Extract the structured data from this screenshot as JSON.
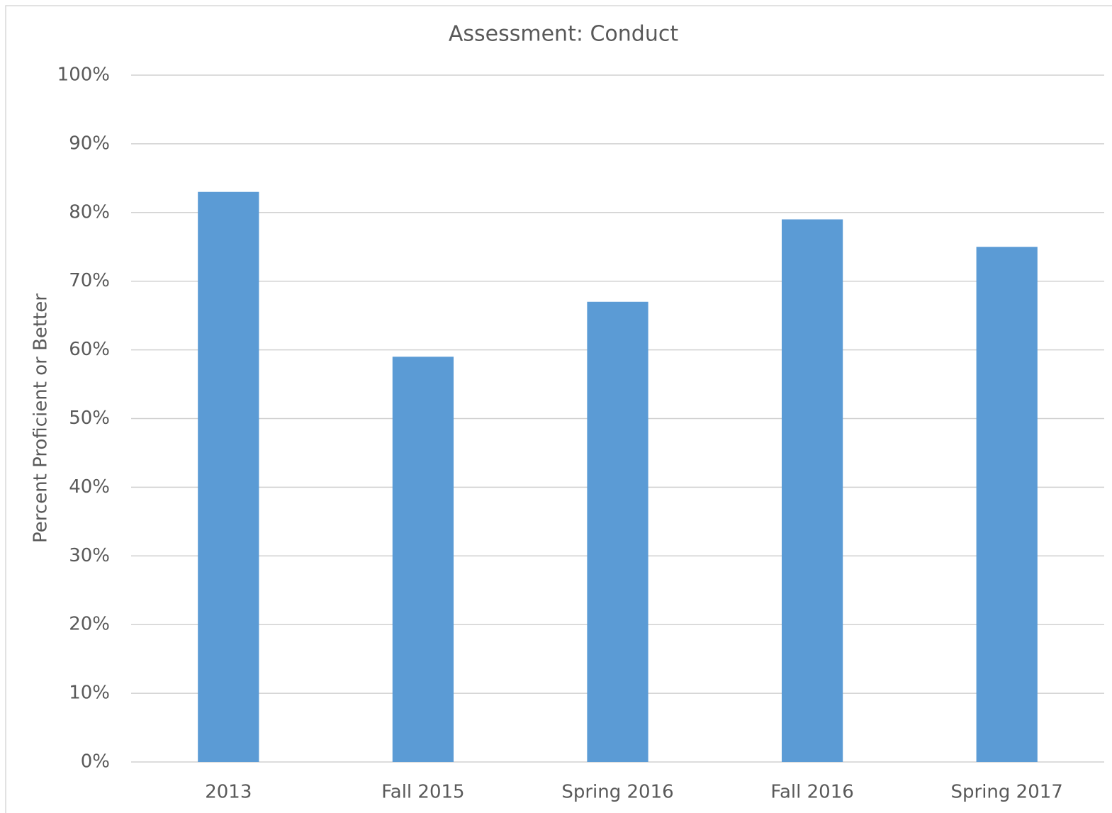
{
  "chart_data": {
    "type": "bar",
    "title": "Assessment: Conduct",
    "y_label": "Percent Proficient or Better",
    "categories": [
      "2013",
      "Fall 2015",
      "Spring 2016",
      "Fall 2016",
      "Spring 2017"
    ],
    "values": [
      83,
      59,
      67,
      79,
      75
    ],
    "color": "#5b9bd5",
    "ylim": [
      0,
      100
    ],
    "yticks": [
      {
        "value": 0,
        "label": "0%"
      },
      {
        "value": 10,
        "label": "10%"
      },
      {
        "value": 20,
        "label": "20%"
      },
      {
        "value": 30,
        "label": "30%"
      },
      {
        "value": 40,
        "label": "40%"
      },
      {
        "value": 50,
        "label": "50%"
      },
      {
        "value": 60,
        "label": "60%"
      },
      {
        "value": 70,
        "label": "70%"
      },
      {
        "value": 80,
        "label": "80%"
      },
      {
        "value": 90,
        "label": "90%"
      },
      {
        "value": 100,
        "label": "100%"
      }
    ],
    "grid": true
  }
}
